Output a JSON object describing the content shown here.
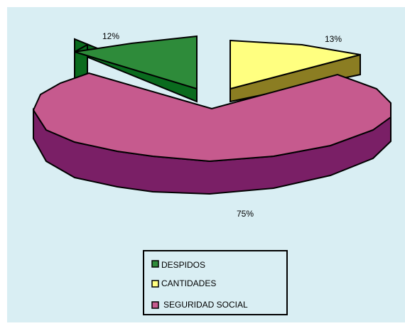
{
  "chart_data": {
    "type": "pie",
    "style": "3d-exploded",
    "categories": [
      "DESPIDOS",
      "CANTIDADES",
      "SEGURIDAD SOCIAL"
    ],
    "values": [
      12,
      13,
      75
    ],
    "labels": [
      "12%",
      "13%",
      "75%"
    ],
    "colors": {
      "DESPIDOS": {
        "top": "#2e8b3a",
        "side": "#0a6b1e"
      },
      "CANTIDADES": {
        "top": "#ffff80",
        "side": "#8b7d22"
      },
      "SEGURIDAD SOCIAL": {
        "top": "#c65a8e",
        "side": "#7a1f66"
      }
    },
    "background": "#d9eef3",
    "legend_position": "bottom-center"
  }
}
